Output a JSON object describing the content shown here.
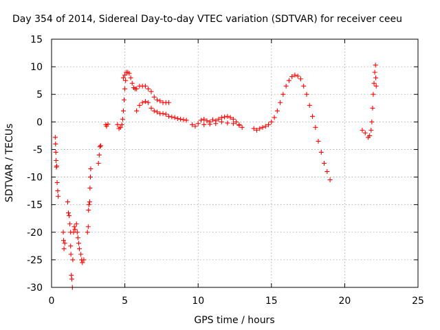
{
  "chart_data": {
    "type": "scatter",
    "title": "Day 354 of 2014, Sidereal Day-to-day VTEC variation (SDTVAR) for receiver ceeu",
    "xlabel": "GPS time / hours",
    "ylabel": "SDTVAR / TECUs",
    "xlim": [
      0,
      25
    ],
    "ylim": [
      -30,
      15
    ],
    "xticks": [
      0,
      5,
      10,
      15,
      20,
      25
    ],
    "yticks": [
      -30,
      -25,
      -20,
      -15,
      -10,
      -5,
      0,
      5,
      10,
      15
    ],
    "grid": true,
    "marker": "plus",
    "color": "#ff0000",
    "series": [
      {
        "name": "SDTVAR",
        "points": [
          [
            0.25,
            -2.8
          ],
          [
            0.27,
            -4.0
          ],
          [
            0.29,
            -5.5
          ],
          [
            0.31,
            -7.0
          ],
          [
            0.33,
            -8.2
          ],
          [
            0.35,
            -8.0
          ],
          [
            0.38,
            -11.0
          ],
          [
            0.42,
            -12.5
          ],
          [
            0.45,
            -13.5
          ],
          [
            0.8,
            -20.0
          ],
          [
            0.82,
            -21.5
          ],
          [
            0.85,
            -23.0
          ],
          [
            0.9,
            -22.0
          ],
          [
            1.1,
            -14.5
          ],
          [
            1.15,
            -16.5
          ],
          [
            1.2,
            -17.0
          ],
          [
            1.25,
            -18.5
          ],
          [
            1.3,
            -20.0
          ],
          [
            1.3,
            -22.5
          ],
          [
            1.32,
            -24.0
          ],
          [
            1.35,
            -27.8
          ],
          [
            1.38,
            -28.5
          ],
          [
            1.42,
            -30.0
          ],
          [
            1.45,
            -25.0
          ],
          [
            1.5,
            -20.0
          ],
          [
            1.55,
            -19.0
          ],
          [
            1.6,
            -19.5
          ],
          [
            1.7,
            -18.5
          ],
          [
            1.75,
            -20.0
          ],
          [
            1.8,
            -21.0
          ],
          [
            1.85,
            -22.0
          ],
          [
            1.9,
            -23.0
          ],
          [
            2.0,
            -24.0
          ],
          [
            2.05,
            -25.0
          ],
          [
            2.1,
            -25.5
          ],
          [
            2.2,
            -25.0
          ],
          [
            2.45,
            -20.0
          ],
          [
            2.5,
            -19.0
          ],
          [
            2.52,
            -16.0
          ],
          [
            2.55,
            -15.0
          ],
          [
            2.6,
            -14.5
          ],
          [
            2.62,
            -12.0
          ],
          [
            2.65,
            -10.0
          ],
          [
            2.67,
            -8.5
          ],
          [
            3.2,
            -7.5
          ],
          [
            3.25,
            -6.0
          ],
          [
            3.3,
            -4.5
          ],
          [
            3.35,
            -4.3
          ],
          [
            3.7,
            -0.5
          ],
          [
            3.75,
            -0.8
          ],
          [
            3.85,
            -0.4
          ],
          [
            4.5,
            -0.5
          ],
          [
            4.6,
            -1.2
          ],
          [
            4.7,
            -1.0
          ],
          [
            4.8,
            -0.5
          ],
          [
            4.85,
            0.5
          ],
          [
            4.9,
            2.0
          ],
          [
            4.95,
            4.0
          ],
          [
            5.0,
            6.0
          ],
          [
            5.05,
            7.5
          ],
          [
            4.9,
            8.0
          ],
          [
            5.0,
            8.5
          ],
          [
            5.1,
            9.0
          ],
          [
            5.2,
            9.0
          ],
          [
            5.3,
            8.8
          ],
          [
            5.4,
            8.0
          ],
          [
            5.5,
            7.0
          ],
          [
            5.6,
            6.2
          ],
          [
            5.7,
            6.0
          ],
          [
            5.8,
            6.0
          ],
          [
            6.0,
            6.5
          ],
          [
            6.2,
            6.5
          ],
          [
            6.4,
            6.5
          ],
          [
            6.6,
            6.0
          ],
          [
            6.8,
            5.5
          ],
          [
            7.0,
            4.5
          ],
          [
            7.2,
            4.0
          ],
          [
            7.4,
            3.8
          ],
          [
            7.6,
            3.5
          ],
          [
            7.8,
            3.5
          ],
          [
            8.0,
            3.5
          ],
          [
            5.8,
            2.0
          ],
          [
            6.0,
            3.0
          ],
          [
            6.2,
            3.5
          ],
          [
            6.4,
            3.7
          ],
          [
            6.6,
            3.5
          ],
          [
            6.8,
            2.5
          ],
          [
            7.0,
            2.0
          ],
          [
            7.2,
            1.8
          ],
          [
            7.4,
            1.5
          ],
          [
            7.6,
            1.5
          ],
          [
            7.8,
            1.4
          ],
          [
            8.0,
            1.0
          ],
          [
            8.2,
            0.9
          ],
          [
            8.4,
            0.8
          ],
          [
            8.6,
            0.6
          ],
          [
            8.8,
            0.5
          ],
          [
            9.0,
            0.4
          ],
          [
            9.2,
            0.3
          ],
          [
            9.6,
            -0.5
          ],
          [
            9.8,
            -0.8
          ],
          [
            10.0,
            -0.3
          ],
          [
            10.2,
            0.3
          ],
          [
            10.4,
            0.5
          ],
          [
            10.6,
            0.2
          ],
          [
            10.8,
            0.0
          ],
          [
            11.0,
            0.4
          ],
          [
            11.2,
            0.2
          ],
          [
            11.4,
            0.5
          ],
          [
            11.6,
            0.8
          ],
          [
            11.8,
            0.9
          ],
          [
            12.0,
            1.0
          ],
          [
            12.2,
            0.8
          ],
          [
            12.4,
            0.5
          ],
          [
            12.6,
            0.0
          ],
          [
            12.8,
            -0.5
          ],
          [
            13.0,
            -1.0
          ],
          [
            10.4,
            -0.5
          ],
          [
            10.8,
            -0.4
          ],
          [
            11.2,
            -0.3
          ],
          [
            11.6,
            0.0
          ],
          [
            12.0,
            -0.2
          ],
          [
            12.4,
            -0.3
          ],
          [
            12.8,
            -0.6
          ],
          [
            13.8,
            -1.2
          ],
          [
            14.0,
            -1.5
          ],
          [
            14.2,
            -1.2
          ],
          [
            14.4,
            -1.0
          ],
          [
            14.6,
            -0.8
          ],
          [
            14.8,
            -0.5
          ],
          [
            15.0,
            0.0
          ],
          [
            15.2,
            0.8
          ],
          [
            15.4,
            2.0
          ],
          [
            15.6,
            3.5
          ],
          [
            15.8,
            5.0
          ],
          [
            16.0,
            6.5
          ],
          [
            16.2,
            7.5
          ],
          [
            16.4,
            8.2
          ],
          [
            16.6,
            8.5
          ],
          [
            16.8,
            8.3
          ],
          [
            17.0,
            7.8
          ],
          [
            17.2,
            6.5
          ],
          [
            17.4,
            5.0
          ],
          [
            17.6,
            3.0
          ],
          [
            17.8,
            1.0
          ],
          [
            18.0,
            -1.0
          ],
          [
            18.2,
            -3.5
          ],
          [
            18.4,
            -5.5
          ],
          [
            18.6,
            -7.5
          ],
          [
            18.8,
            -9.0
          ],
          [
            19.0,
            -10.5
          ],
          [
            21.2,
            -1.5
          ],
          [
            21.4,
            -2.0
          ],
          [
            21.6,
            -2.8
          ],
          [
            21.7,
            -2.5
          ],
          [
            21.8,
            -1.5
          ],
          [
            21.85,
            0.0
          ],
          [
            21.9,
            2.5
          ],
          [
            21.95,
            5.0
          ],
          [
            22.0,
            7.0
          ],
          [
            22.05,
            9.0
          ],
          [
            22.1,
            10.3
          ],
          [
            22.12,
            8.0
          ],
          [
            22.15,
            6.5
          ]
        ]
      }
    ]
  }
}
